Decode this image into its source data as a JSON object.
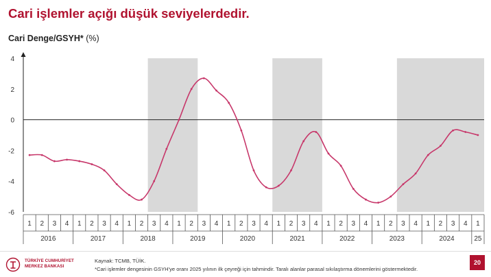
{
  "title": "Cari işlemler açığı düşük seviyelerdedir.",
  "subtitle_bold": "Cari Denge/GSYH*",
  "subtitle_unit": " (%)",
  "chart_data": {
    "type": "line",
    "title": "Cari işlemler açığı düşük seviyelerdedir.",
    "ylabel": "Cari Denge/GSYH* (%)",
    "ylim": [
      -6,
      4
    ],
    "yticks": [
      4,
      2,
      0,
      -2,
      -4,
      -6
    ],
    "grid": false,
    "years": [
      "2016",
      "2017",
      "2018",
      "2019",
      "2020",
      "2021",
      "2022",
      "2023",
      "2024",
      "25"
    ],
    "quarter_labels": [
      "1",
      "2",
      "3",
      "4",
      "1",
      "2",
      "3",
      "4",
      "1",
      "2",
      "3",
      "4",
      "1",
      "2",
      "3",
      "4",
      "1",
      "2",
      "3",
      "4",
      "1",
      "2",
      "3",
      "4",
      "1",
      "2",
      "3",
      "4",
      "1",
      "2",
      "3",
      "4",
      "1",
      "2",
      "3",
      "4",
      "1"
    ],
    "x": [
      "2016Q1",
      "2016Q2",
      "2016Q3",
      "2016Q4",
      "2017Q1",
      "2017Q2",
      "2017Q3",
      "2017Q4",
      "2018Q1",
      "2018Q2",
      "2018Q3",
      "2018Q4",
      "2019Q1",
      "2019Q2",
      "2019Q3",
      "2019Q4",
      "2020Q1",
      "2020Q2",
      "2020Q3",
      "2020Q4",
      "2021Q1",
      "2021Q2",
      "2021Q3",
      "2021Q4",
      "2022Q1",
      "2022Q2",
      "2022Q3",
      "2022Q4",
      "2023Q1",
      "2023Q2",
      "2023Q3",
      "2023Q4",
      "2024Q1",
      "2024Q2",
      "2024Q3",
      "2024Q4",
      "2025Q1"
    ],
    "series": [
      {
        "values": [
          -2.3,
          -2.3,
          -2.7,
          -2.6,
          -2.7,
          -2.9,
          -3.3,
          -4.2,
          -4.9,
          -5.2,
          -4.0,
          -1.9,
          0.0,
          2.0,
          2.7,
          1.9,
          1.1,
          -0.7,
          -3.3,
          -4.4,
          -4.3,
          -3.3,
          -1.4,
          -0.8,
          -2.2,
          -3.0,
          -4.5,
          -5.2,
          -5.4,
          -5.0,
          -4.2,
          -3.5,
          -2.3,
          -1.7,
          -0.7,
          -0.8,
          -1.0
        ]
      }
    ],
    "shaded_periods": [
      {
        "start": "2018Q3",
        "end": "2019Q2"
      },
      {
        "start": "2021Q1",
        "end": "2021Q4"
      },
      {
        "start": "2023Q3",
        "end": "2025Q1"
      }
    ],
    "colors": {
      "line": "#c7376a",
      "shade": "#d9d9d9",
      "accent": "#b0122f"
    }
  },
  "footer": {
    "logo_line1": "TÜRKİYE CUMHURİYET",
    "logo_line2": "MERKEZ BANKASI",
    "source": "Kaynak: TCMB, TÜİK.",
    "footnote": "*Cari işlemler dengesinin GSYH'ye oranı 2025 yılının ilk çeyreği için tahmindir. Taralı alanlar parasal sıkılaştırma dönemlerini göstermektedir.",
    "page_number": "20"
  }
}
